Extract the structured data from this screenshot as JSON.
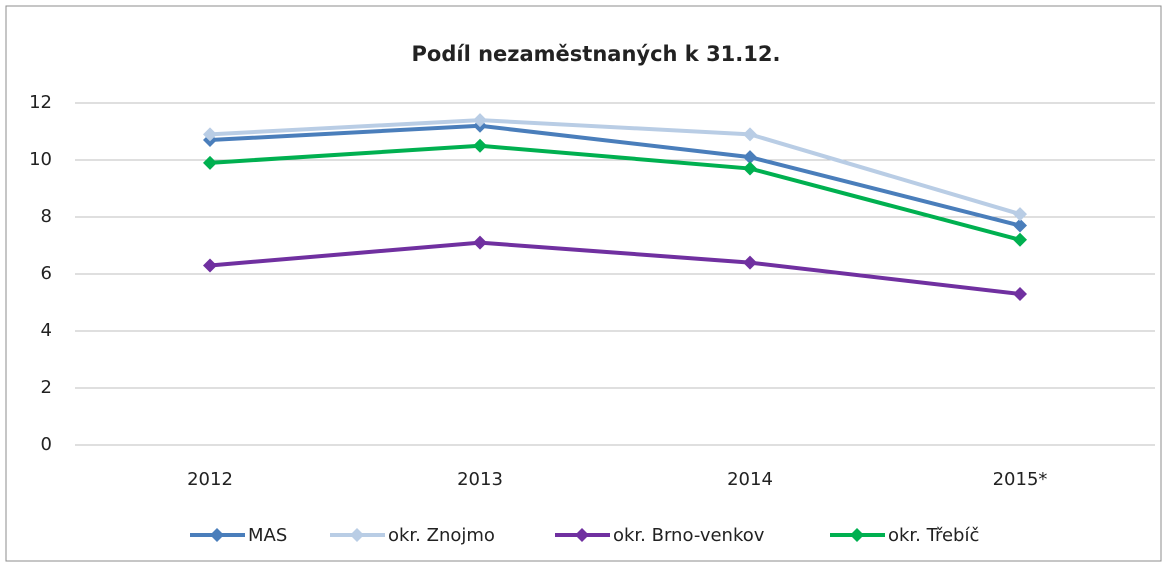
{
  "chart_data": {
    "type": "line",
    "title": "Podíl nezaměstnaných k 31.12.",
    "categories": [
      "2012",
      "2013",
      "2014",
      "2015*"
    ],
    "series": [
      {
        "name": "MAS",
        "color": "#4a7ebb",
        "values": [
          10.7,
          11.2,
          10.1,
          7.7
        ]
      },
      {
        "name": "okr. Znojmo",
        "color": "#b9cde5",
        "values": [
          10.9,
          11.4,
          10.9,
          8.1
        ]
      },
      {
        "name": "okr. Brno-venkov",
        "color": "#7030a0",
        "values": [
          6.3,
          7.1,
          6.4,
          5.3
        ]
      },
      {
        "name": "okr. Třebíč",
        "color": "#00b050",
        "values": [
          9.9,
          10.5,
          9.7,
          7.2
        ]
      }
    ],
    "ylim": [
      0,
      12
    ],
    "yticks": [
      0,
      2,
      4,
      6,
      8,
      10,
      12
    ],
    "grid": true,
    "legend": "bottom"
  }
}
